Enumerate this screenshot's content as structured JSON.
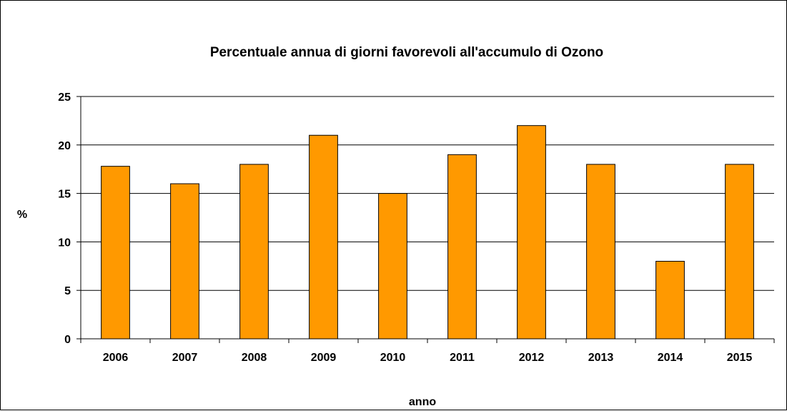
{
  "chart_data": {
    "type": "bar",
    "title": "Percentuale annua di giorni favorevoli all'accumulo di Ozono",
    "xlabel": "anno",
    "ylabel": "%",
    "categories": [
      "2006",
      "2007",
      "2008",
      "2009",
      "2010",
      "2011",
      "2012",
      "2013",
      "2014",
      "2015"
    ],
    "values": [
      17.8,
      16,
      18,
      21,
      15,
      19,
      22,
      18,
      8,
      18
    ],
    "ylim": [
      0,
      25
    ],
    "yticks": [
      0,
      5,
      10,
      15,
      20,
      25
    ],
    "grid": true,
    "legend": "none",
    "bar_color": "#FF9900",
    "plot_background": "#ffffff"
  }
}
